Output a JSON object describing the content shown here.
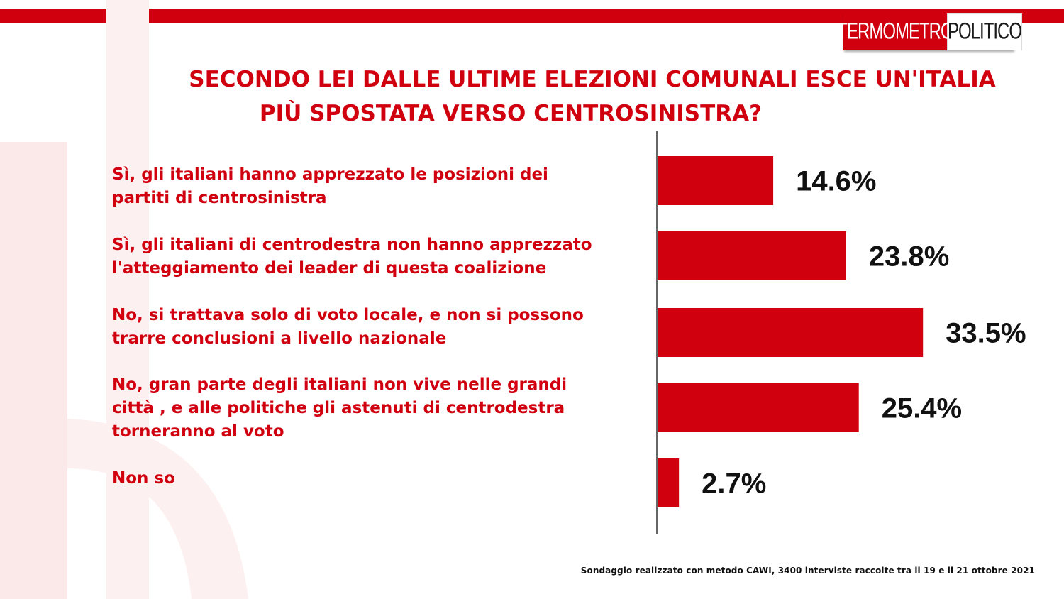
{
  "header": {
    "logo_part1": "TERMOMETRO",
    "logo_part2": "POLITICO",
    "accent_color": "#d0000f"
  },
  "question": {
    "line1": "SECONDO LEI DALLE ULTIME ELEZIONI COMUNALI ESCE UN'ITALIA",
    "line2": "PIÙ SPOSTATA VERSO CENTROSINISTRA?"
  },
  "chart_data": {
    "type": "bar",
    "orientation": "horizontal",
    "categories": [
      "Sì, gli italiani hanno apprezzato le posizioni dei partiti di centrosinistra",
      "Sì, gli italiani di centrodestra non hanno apprezzato l'atteggiamento dei leader di questa coalizione",
      "No, si trattava solo di voto locale, e non si possono trarre conclusioni a livello nazionale",
      "No, gran parte degli italiani non vive nelle grandi città , e alle politiche gli astenuti di centrodestra torneranno al voto",
      "Non so"
    ],
    "values": [
      14.6,
      23.8,
      33.5,
      25.4,
      2.7
    ],
    "value_labels": [
      "14.6%",
      "23.8%",
      "33.5%",
      "25.4%",
      "2.7%"
    ],
    "title": "SECONDO LEI DALLE ULTIME ELEZIONI COMUNALI ESCE UN'ITALIA PIÙ SPOSTATA VERSO CENTROSINISTRA?",
    "xlim": [
      0,
      40
    ],
    "grid": false,
    "legend": "none",
    "bar_color": "#d0000f"
  },
  "answers": [
    {
      "line1": "Sì, gli italiani hanno apprezzato le posizioni dei",
      "line2": "partiti di centrosinistra",
      "line3": ""
    },
    {
      "line1": "Sì, gli italiani di centrodestra non hanno apprezzato",
      "line2": "l'atteggiamento dei leader di questa coalizione",
      "line3": ""
    },
    {
      "line1": "No, si trattava solo di voto locale, e non si possono",
      "line2": "trarre conclusioni a livello nazionale",
      "line3": ""
    },
    {
      "line1": "No, gran parte degli italiani non vive nelle grandi",
      "line2": "città , e alle politiche gli astenuti di centrodestra",
      "line3": "torneranno al voto"
    },
    {
      "line1": "Non so",
      "line2": "",
      "line3": ""
    }
  ],
  "footer": {
    "source": "Sondaggio realizzato con metodo CAWI, 3400 interviste raccolte tra il 19 e il 21  ottobre 2021"
  }
}
